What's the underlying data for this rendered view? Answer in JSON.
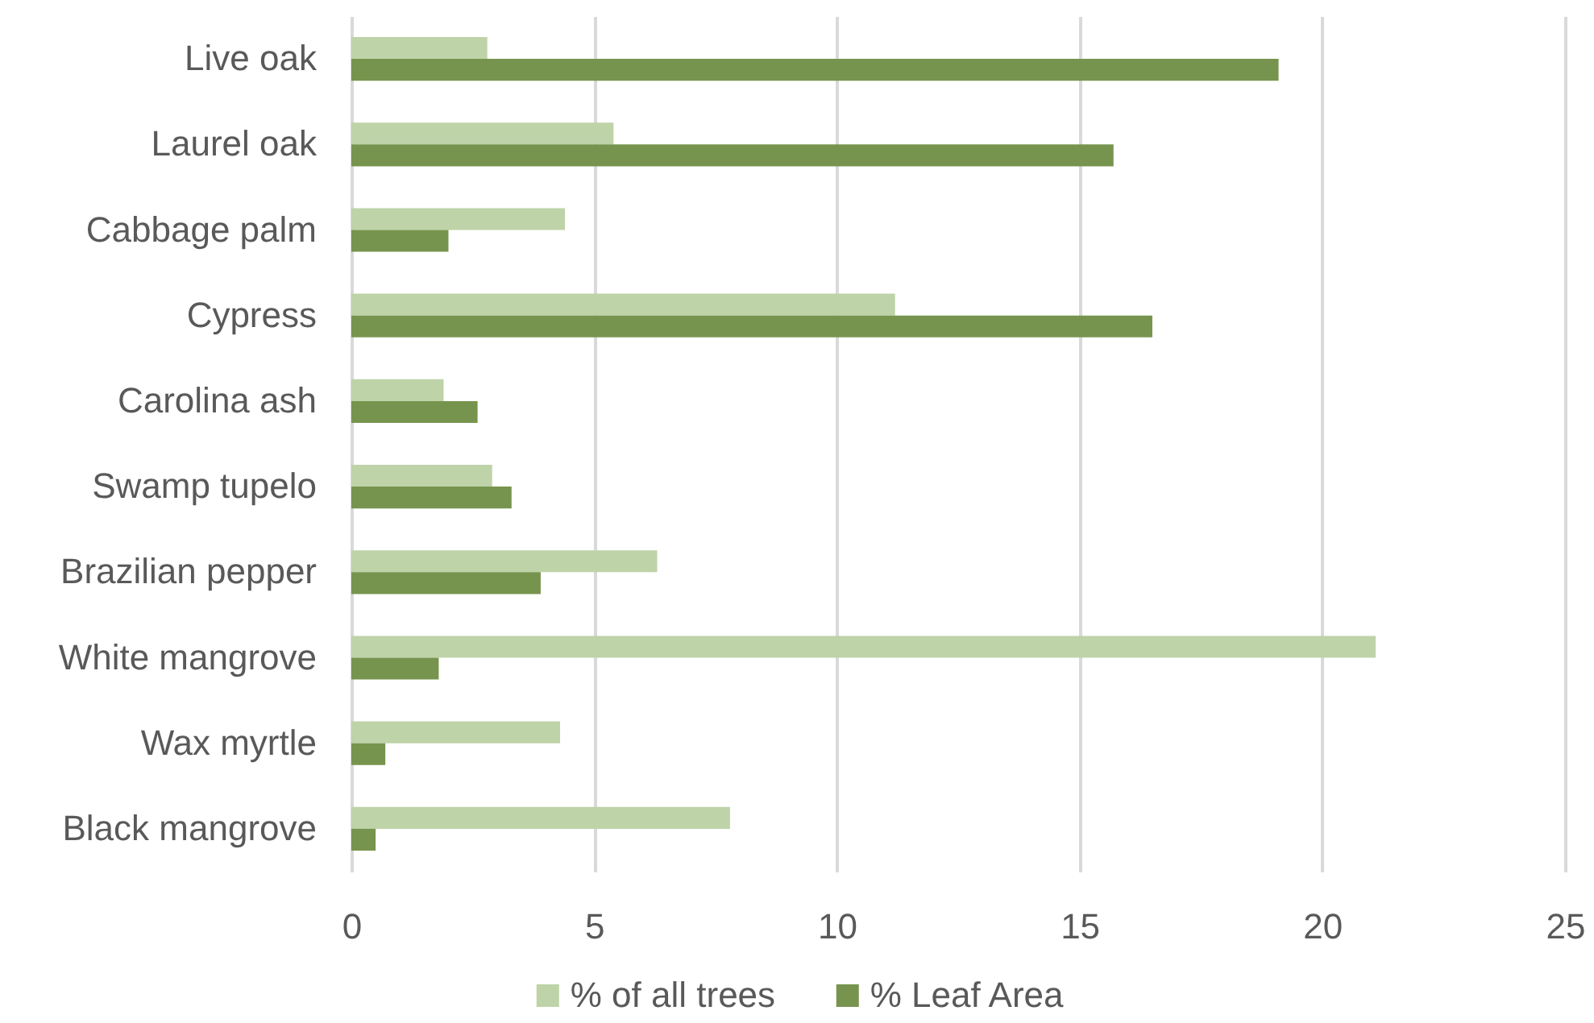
{
  "chart_data": {
    "type": "bar",
    "orientation": "horizontal",
    "categories": [
      "Live oak",
      "Laurel oak",
      "Cabbage palm",
      "Cypress",
      "Carolina ash",
      "Swamp tupelo",
      "Brazilian pepper",
      "White mangrove",
      "Wax myrtle",
      "Black mangrove"
    ],
    "series": [
      {
        "name": "% of all trees",
        "color": "#bed3a8",
        "values": [
          2.8,
          5.4,
          4.4,
          11.2,
          1.9,
          2.9,
          6.3,
          21.1,
          4.3,
          7.8
        ]
      },
      {
        "name": "% Leaf Area",
        "color": "#77944e",
        "values": [
          19.1,
          15.7,
          2.0,
          16.5,
          2.6,
          3.3,
          3.9,
          1.8,
          0.7,
          0.5
        ]
      }
    ],
    "xlim": [
      0,
      25
    ],
    "xticks": [
      0,
      5,
      10,
      15,
      20,
      25
    ],
    "grid": "x",
    "legend": "bottom"
  }
}
